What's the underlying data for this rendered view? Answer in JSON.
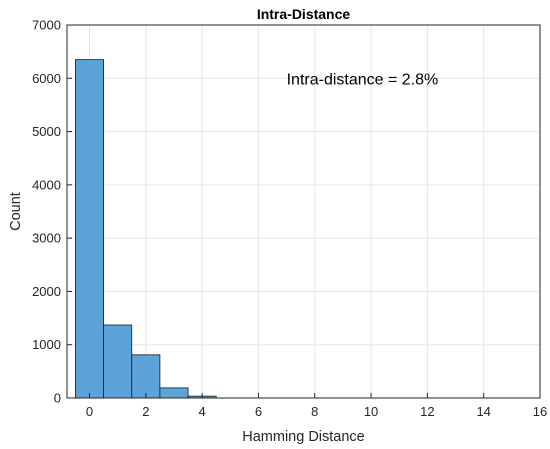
{
  "chart_data": {
    "type": "bar",
    "title": "Intra-Distance",
    "xlabel": "Hamming Distance",
    "ylabel": "Count",
    "xlim": [
      -0.8,
      16
    ],
    "ylim": [
      0,
      7000
    ],
    "xticks": [
      0,
      2,
      4,
      6,
      8,
      10,
      12,
      14,
      16
    ],
    "yticks": [
      0,
      1000,
      2000,
      3000,
      4000,
      5000,
      6000,
      7000
    ],
    "grid": true,
    "bin_width": 1,
    "bins": [
      {
        "x": 0,
        "value": 6350
      },
      {
        "x": 1,
        "value": 1370
      },
      {
        "x": 2,
        "value": 810
      },
      {
        "x": 3,
        "value": 190
      },
      {
        "x": 4,
        "value": 35
      }
    ],
    "annotation": "Intra-distance = 2.8%",
    "colors": {
      "bar_fill": "#5ba3d9",
      "bar_edge": "#1a1a1a",
      "grid": "#e6e6e6",
      "axis": "#262626"
    }
  }
}
